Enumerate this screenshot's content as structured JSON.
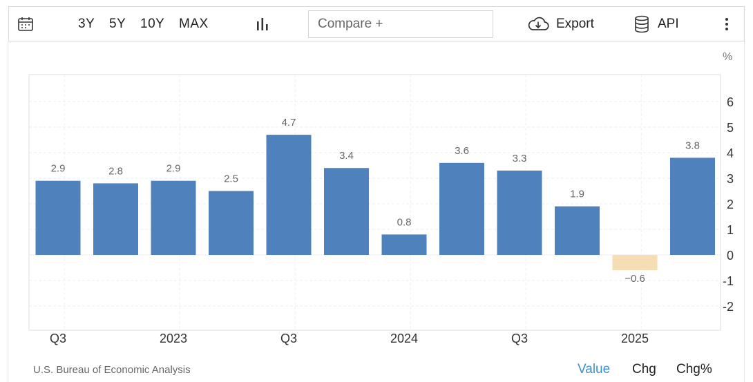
{
  "toolbar": {
    "calendar_icon": "calendar-icon",
    "ranges": [
      "3Y",
      "5Y",
      "10Y",
      "MAX"
    ],
    "chart_type_icon": "bar-chart-icon",
    "compare_placeholder": "Compare +",
    "export_label": "Export",
    "export_icon": "cloud-download-icon",
    "api_label": "API",
    "api_icon": "database-icon",
    "more_icon": "vertical-dots-icon"
  },
  "unit_label": "%",
  "source": "U.S. Bureau of Economic Analysis",
  "modes": {
    "value": "Value",
    "chg": "Chg",
    "chg_pct": "Chg%"
  },
  "colors": {
    "positive": "#4f81bd",
    "negative": "#f5deb3",
    "accent": "#3b8fd6"
  },
  "chart_data": {
    "type": "bar",
    "title": "",
    "xlabel": "",
    "ylabel": "",
    "ylim": [
      -2.8,
      7
    ],
    "yticks": [
      6,
      5,
      4,
      3,
      2,
      1,
      0,
      -1,
      -2
    ],
    "grid": true,
    "x_tick_labels": [
      "Q3",
      "2023",
      "Q3",
      "2024",
      "Q3",
      "2025"
    ],
    "values": [
      2.9,
      2.8,
      2.9,
      2.5,
      4.7,
      3.4,
      0.8,
      3.6,
      3.3,
      1.9,
      -0.6,
      3.8
    ],
    "data_labels": [
      "2.9",
      "2.8",
      "2.9",
      "2.5",
      "4.7",
      "3.4",
      "0.8",
      "3.6",
      "3.3",
      "1.9",
      "−0.6",
      "3.8"
    ]
  }
}
